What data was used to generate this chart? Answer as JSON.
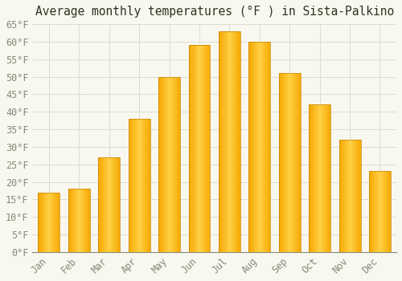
{
  "title": "Average monthly temperatures (°F ) in Sista-Palkino",
  "months": [
    "Jan",
    "Feb",
    "Mar",
    "Apr",
    "May",
    "Jun",
    "Jul",
    "Aug",
    "Sep",
    "Oct",
    "Nov",
    "Dec"
  ],
  "values": [
    17,
    18,
    27,
    38,
    50,
    59,
    63,
    60,
    51,
    42,
    32,
    23
  ],
  "bar_color_left": "#F5A800",
  "bar_color_center": "#FFD045",
  "bar_color_right": "#F5A800",
  "bar_edge_color": "#C88000",
  "background_color": "#F8F8F0",
  "grid_color": "#DDDDCC",
  "text_color": "#888877",
  "title_color": "#333322",
  "ylim": [
    0,
    65
  ],
  "yticks": [
    0,
    5,
    10,
    15,
    20,
    25,
    30,
    35,
    40,
    45,
    50,
    55,
    60,
    65
  ],
  "title_fontsize": 10.5,
  "tick_fontsize": 8.5,
  "bar_width": 0.72
}
